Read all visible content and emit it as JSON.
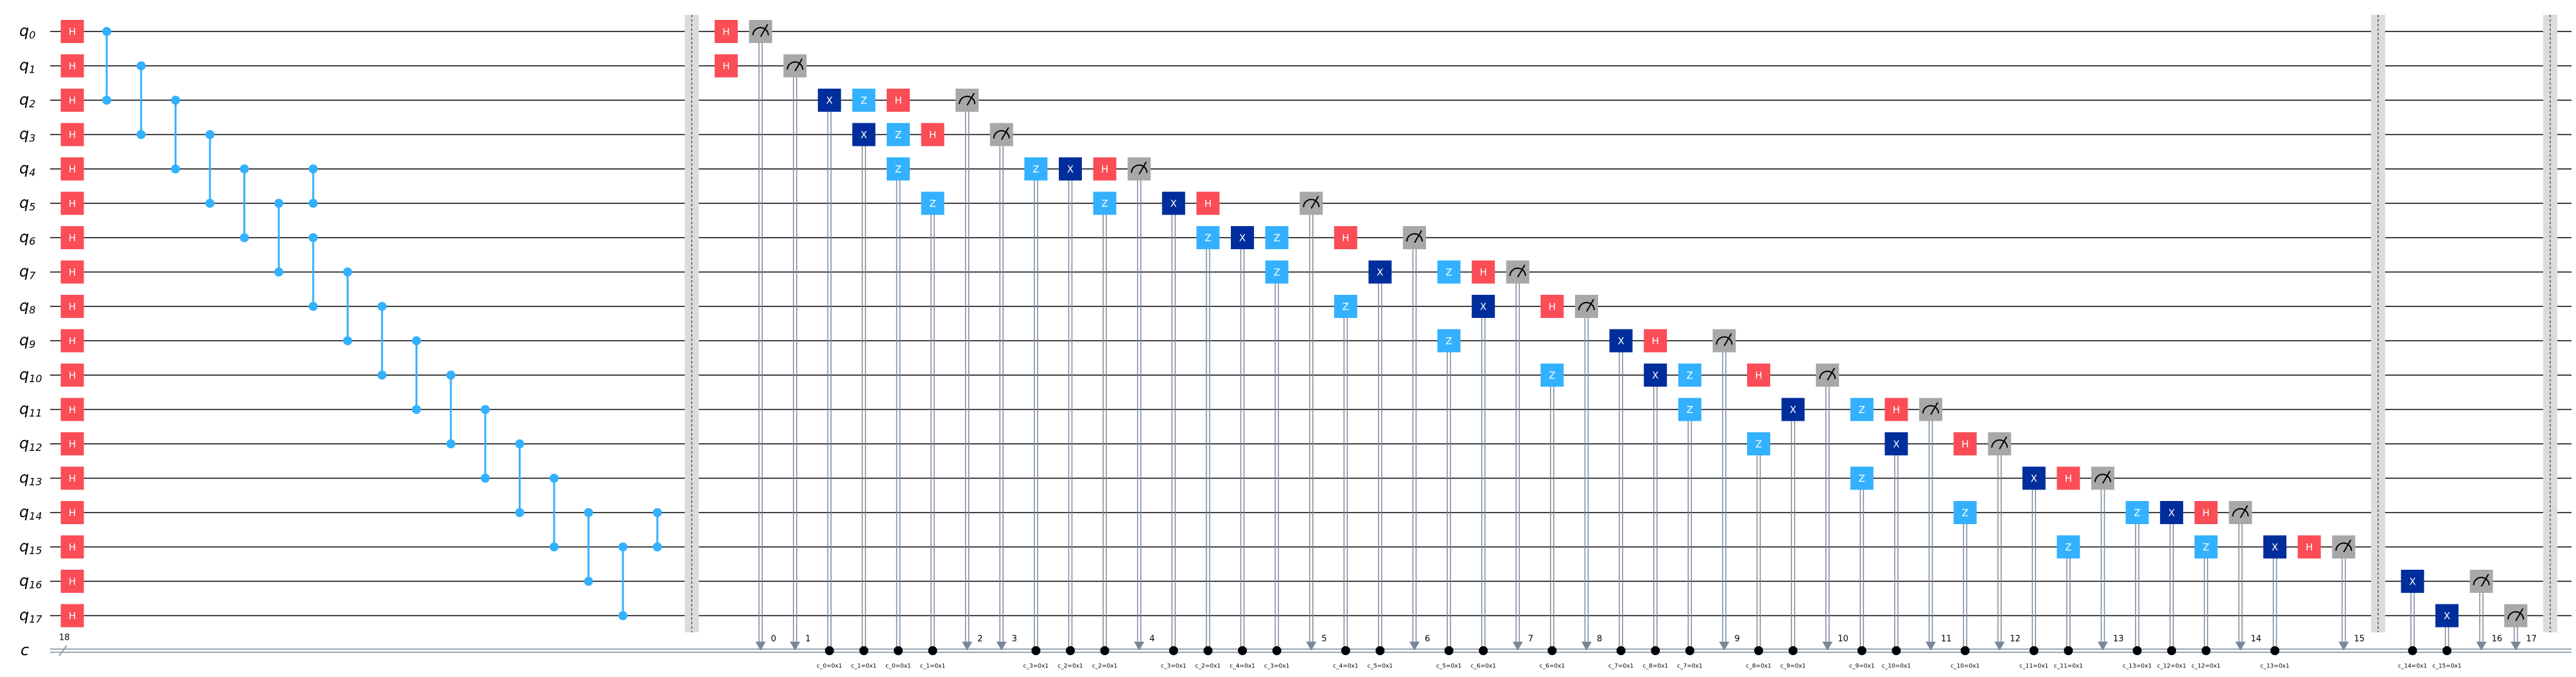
{
  "qubits": [
    {
      "name": "q",
      "index": "0"
    },
    {
      "name": "q",
      "index": "1"
    },
    {
      "name": "q",
      "index": "2"
    },
    {
      "name": "q",
      "index": "3"
    },
    {
      "name": "q",
      "index": "4"
    },
    {
      "name": "q",
      "index": "5"
    },
    {
      "name": "q",
      "index": "6"
    },
    {
      "name": "q",
      "index": "7"
    },
    {
      "name": "q",
      "index": "8"
    },
    {
      "name": "q",
      "index": "9"
    },
    {
      "name": "q",
      "index": "10"
    },
    {
      "name": "q",
      "index": "11"
    },
    {
      "name": "q",
      "index": "12"
    },
    {
      "name": "q",
      "index": "13"
    },
    {
      "name": "q",
      "index": "14"
    },
    {
      "name": "q",
      "index": "15"
    },
    {
      "name": "q",
      "index": "16"
    },
    {
      "name": "q",
      "index": "17"
    }
  ],
  "clbit": {
    "name": "c",
    "size": "18"
  },
  "barriers": [
    18,
    67,
    72
  ],
  "cz": [
    {
      "qubits": [
        0,
        2
      ],
      "col": 1
    },
    {
      "qubits": [
        1,
        3
      ],
      "col": 2
    },
    {
      "qubits": [
        2,
        4
      ],
      "col": 3
    },
    {
      "qubits": [
        3,
        5
      ],
      "col": 4
    },
    {
      "qubits": [
        4,
        6
      ],
      "col": 5
    },
    {
      "qubits": [
        5,
        7
      ],
      "col": 6
    },
    {
      "qubits": [
        6,
        8
      ],
      "col": 7
    },
    {
      "qubits": [
        4,
        5
      ],
      "col": 7
    },
    {
      "qubits": [
        7,
        9
      ],
      "col": 8
    },
    {
      "qubits": [
        8,
        10
      ],
      "col": 9
    },
    {
      "qubits": [
        9,
        11
      ],
      "col": 10
    },
    {
      "qubits": [
        10,
        12
      ],
      "col": 11
    },
    {
      "qubits": [
        11,
        13
      ],
      "col": 12
    },
    {
      "qubits": [
        12,
        14
      ],
      "col": 13
    },
    {
      "qubits": [
        13,
        15
      ],
      "col": 14
    },
    {
      "qubits": [
        14,
        16
      ],
      "col": 15
    },
    {
      "qubits": [
        15,
        17
      ],
      "col": 16
    },
    {
      "qubits": [
        14,
        15
      ],
      "col": 17
    }
  ],
  "gates": [
    {
      "label": "H",
      "qubit": 0,
      "col": 0
    },
    {
      "label": "H",
      "qubit": 1,
      "col": 0
    },
    {
      "label": "H",
      "qubit": 2,
      "col": 0
    },
    {
      "label": "H",
      "qubit": 3,
      "col": 0
    },
    {
      "label": "H",
      "qubit": 4,
      "col": 0
    },
    {
      "label": "H",
      "qubit": 5,
      "col": 0
    },
    {
      "label": "H",
      "qubit": 6,
      "col": 0
    },
    {
      "label": "H",
      "qubit": 7,
      "col": 0
    },
    {
      "label": "H",
      "qubit": 8,
      "col": 0
    },
    {
      "label": "H",
      "qubit": 9,
      "col": 0
    },
    {
      "label": "H",
      "qubit": 10,
      "col": 0
    },
    {
      "label": "H",
      "qubit": 11,
      "col": 0
    },
    {
      "label": "H",
      "qubit": 12,
      "col": 0
    },
    {
      "label": "H",
      "qubit": 13,
      "col": 0
    },
    {
      "label": "H",
      "qubit": 14,
      "col": 0
    },
    {
      "label": "H",
      "qubit": 15,
      "col": 0
    },
    {
      "label": "H",
      "qubit": 16,
      "col": 0
    },
    {
      "label": "H",
      "qubit": 17,
      "col": 0
    },
    {
      "label": "H",
      "qubit": 0,
      "col": 19
    },
    {
      "label": "H",
      "qubit": 1,
      "col": 19
    },
    {
      "label": "X",
      "qubit": 2,
      "col": 22,
      "condition": "c_0=0x1"
    },
    {
      "label": "Z",
      "qubit": 2,
      "col": 23
    },
    {
      "label": "H",
      "qubit": 2,
      "col": 24
    },
    {
      "label": "X",
      "qubit": 3,
      "col": 23,
      "condition": "c_1=0x1"
    },
    {
      "label": "Z",
      "qubit": 3,
      "col": 24
    },
    {
      "label": "H",
      "qubit": 3,
      "col": 25
    },
    {
      "label": "Z",
      "qubit": 4,
      "col": 24,
      "condition": "c_0=0x1"
    },
    {
      "label": "Z",
      "qubit": 4,
      "col": 28,
      "condition": "c_3=0x1"
    },
    {
      "label": "X",
      "qubit": 4,
      "col": 29,
      "condition": "c_2=0x1"
    },
    {
      "label": "H",
      "qubit": 4,
      "col": 30
    },
    {
      "label": "Z",
      "qubit": 5,
      "col": 25,
      "condition": "c_1=0x1"
    },
    {
      "label": "Z",
      "qubit": 5,
      "col": 30,
      "condition": "c_2=0x1"
    },
    {
      "label": "X",
      "qubit": 5,
      "col": 32,
      "condition": "c_3=0x1"
    },
    {
      "label": "H",
      "qubit": 5,
      "col": 33
    },
    {
      "label": "Z",
      "qubit": 6,
      "col": 33,
      "condition": "c_2=0x1"
    },
    {
      "label": "X",
      "qubit": 6,
      "col": 34,
      "condition": "c_4=0x1"
    },
    {
      "label": "Z",
      "qubit": 6,
      "col": 35
    },
    {
      "label": "H",
      "qubit": 6,
      "col": 37
    },
    {
      "label": "Z",
      "qubit": 7,
      "col": 35,
      "condition": "c_3=0x1"
    },
    {
      "label": "X",
      "qubit": 7,
      "col": 38,
      "condition": "c_5=0x1"
    },
    {
      "label": "Z",
      "qubit": 7,
      "col": 40
    },
    {
      "label": "H",
      "qubit": 7,
      "col": 41
    },
    {
      "label": "Z",
      "qubit": 8,
      "col": 37,
      "condition": "c_4=0x1"
    },
    {
      "label": "X",
      "qubit": 8,
      "col": 41,
      "condition": "c_6=0x1"
    },
    {
      "label": "H",
      "qubit": 8,
      "col": 43
    },
    {
      "label": "Z",
      "qubit": 9,
      "col": 40,
      "condition": "c_5=0x1"
    },
    {
      "label": "X",
      "qubit": 9,
      "col": 45,
      "condition": "c_7=0x1"
    },
    {
      "label": "H",
      "qubit": 9,
      "col": 46
    },
    {
      "label": "Z",
      "qubit": 10,
      "col": 43,
      "condition": "c_6=0x1"
    },
    {
      "label": "X",
      "qubit": 10,
      "col": 46,
      "condition": "c_8=0x1"
    },
    {
      "label": "Z",
      "qubit": 10,
      "col": 47
    },
    {
      "label": "H",
      "qubit": 10,
      "col": 49
    },
    {
      "label": "Z",
      "qubit": 11,
      "col": 47,
      "condition": "c_7=0x1"
    },
    {
      "label": "X",
      "qubit": 11,
      "col": 50,
      "condition": "c_9=0x1"
    },
    {
      "label": "Z",
      "qubit": 11,
      "col": 52
    },
    {
      "label": "H",
      "qubit": 11,
      "col": 53
    },
    {
      "label": "Z",
      "qubit": 12,
      "col": 49,
      "condition": "c_8=0x1"
    },
    {
      "label": "X",
      "qubit": 12,
      "col": 53,
      "condition": "c_10=0x1"
    },
    {
      "label": "H",
      "qubit": 12,
      "col": 55
    },
    {
      "label": "Z",
      "qubit": 13,
      "col": 52,
      "condition": "c_9=0x1"
    },
    {
      "label": "X",
      "qubit": 13,
      "col": 57,
      "condition": "c_11=0x1"
    },
    {
      "label": "H",
      "qubit": 13,
      "col": 58
    },
    {
      "label": "Z",
      "qubit": 14,
      "col": 55,
      "condition": "c_10=0x1"
    },
    {
      "label": "Z",
      "qubit": 14,
      "col": 60,
      "condition": "c_13=0x1"
    },
    {
      "label": "X",
      "qubit": 14,
      "col": 61,
      "condition": "c_12=0x1"
    },
    {
      "label": "H",
      "qubit": 14,
      "col": 62
    },
    {
      "label": "Z",
      "qubit": 15,
      "col": 58,
      "condition": "c_11=0x1"
    },
    {
      "label": "Z",
      "qubit": 15,
      "col": 62,
      "condition": "c_12=0x1"
    },
    {
      "label": "X",
      "qubit": 15,
      "col": 64,
      "condition": "c_13=0x1"
    },
    {
      "label": "H",
      "qubit": 15,
      "col": 65
    },
    {
      "label": "X",
      "qubit": 16,
      "col": 68,
      "condition": "c_14=0x1"
    },
    {
      "label": "X",
      "qubit": 17,
      "col": 69,
      "condition": "c_15=0x1"
    }
  ],
  "measures": [
    {
      "qubit": 0,
      "col": 20,
      "bit": "0"
    },
    {
      "qubit": 1,
      "col": 21,
      "bit": "1"
    },
    {
      "qubit": 2,
      "col": 26,
      "bit": "2"
    },
    {
      "qubit": 3,
      "col": 27,
      "bit": "3"
    },
    {
      "qubit": 4,
      "col": 31,
      "bit": "4"
    },
    {
      "qubit": 5,
      "col": 36,
      "bit": "5"
    },
    {
      "qubit": 6,
      "col": 39,
      "bit": "6"
    },
    {
      "qubit": 7,
      "col": 42,
      "bit": "7"
    },
    {
      "qubit": 8,
      "col": 44,
      "bit": "8"
    },
    {
      "qubit": 9,
      "col": 48,
      "bit": "9"
    },
    {
      "qubit": 10,
      "col": 51,
      "bit": "10"
    },
    {
      "qubit": 11,
      "col": 54,
      "bit": "11"
    },
    {
      "qubit": 12,
      "col": 56,
      "bit": "12"
    },
    {
      "qubit": 13,
      "col": 59,
      "bit": "13"
    },
    {
      "qubit": 14,
      "col": 63,
      "bit": "14"
    },
    {
      "qubit": 15,
      "col": 66,
      "bit": "15"
    },
    {
      "qubit": 16,
      "col": 70,
      "bit": "16"
    },
    {
      "qubit": 17,
      "col": 71,
      "bit": "17"
    }
  ]
}
